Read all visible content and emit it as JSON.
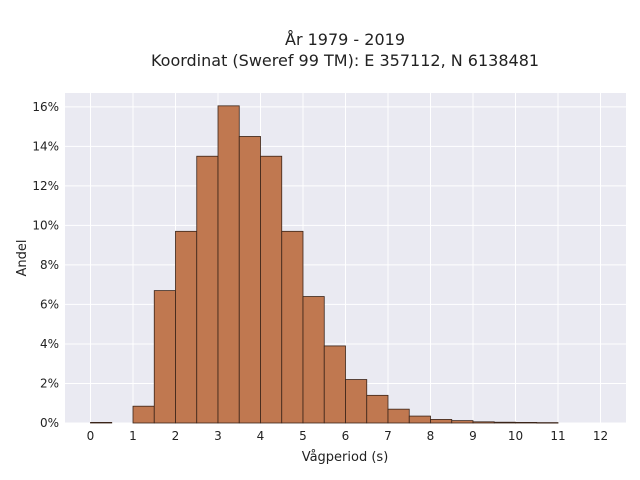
{
  "chart_data": {
    "type": "bar",
    "title_line1": "År 1979 - 2019",
    "title_line2": "Koordinat (Sweref 99 TM): E 357112, N 6138481",
    "xlabel": "Vågperiod (s)",
    "ylabel": "Andel",
    "xlim": [
      -0.6,
      12.6
    ],
    "ylim": [
      0,
      16.7
    ],
    "x_ticks": [
      0,
      1,
      2,
      3,
      4,
      5,
      6,
      7,
      8,
      9,
      10,
      11,
      12
    ],
    "y_ticks": [
      0,
      2,
      4,
      6,
      8,
      10,
      12,
      14,
      16
    ],
    "y_tick_labels": [
      "0%",
      "2%",
      "4%",
      "6%",
      "8%",
      "10%",
      "12%",
      "14%",
      "16%"
    ],
    "bin_width": 0.5,
    "bin_starts": [
      0,
      1,
      1.5,
      2,
      2.5,
      3,
      3.5,
      4,
      4.5,
      5,
      5.5,
      6,
      6.5,
      7,
      7.5,
      8,
      8.5,
      9,
      9.5,
      10,
      10.5
    ],
    "values": [
      0.03,
      0.85,
      6.7,
      9.7,
      13.5,
      16.05,
      14.5,
      13.5,
      9.7,
      6.4,
      3.9,
      2.2,
      1.4,
      0.7,
      0.35,
      0.18,
      0.12,
      0.06,
      0.04,
      0.03,
      0.02
    ],
    "grid": true,
    "legend": "none",
    "bar_color": "#c07850",
    "bar_edge_color": "#3a2418",
    "plot_bg": "#eaeaf2",
    "grid_color": "#ffffff"
  }
}
